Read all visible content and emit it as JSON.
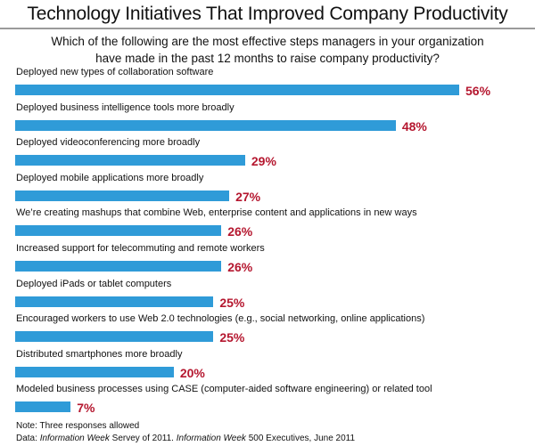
{
  "chart_data": {
    "type": "bar",
    "orientation": "horizontal",
    "title": "Technology Initiatives That Improved Company Productivity",
    "subtitle": [
      "Which of the following are the most effective steps managers in your organization",
      "have made in the past 12 months to raise company productivity?"
    ],
    "categories": [
      "Deployed new types of collaboration software",
      "Deployed business intelligence tools more broadly",
      "Deployed videoconferencing more broadly",
      "Deployed mobile applications more broadly",
      "We’re creating mashups that combine Web, enterprise content and applications in new ways",
      "Increased support for telecommuting and remote workers",
      "Deployed iPads or tablet computers",
      "Encouraged workers to use Web 2.0 technologies (e.g., social networking, online applications)",
      "Distributed smartphones more broadly",
      "Modeled business processes using CASE (computer-aided software engineering) or related tool"
    ],
    "values": [
      56,
      48,
      29,
      27,
      26,
      26,
      25,
      25,
      20,
      7
    ],
    "data_labels": [
      "56%",
      "48%",
      "29%",
      "27%",
      "26%",
      "26%",
      "25%",
      "25%",
      "20%",
      "7%"
    ],
    "unit": "%",
    "bar_color": "#2f9bd8",
    "label_color": "#b5172f",
    "grid": false
  },
  "footer": {
    "note": "Note: Three responses allowed",
    "source_prefix": "Data: ",
    "source_pub1": "Information Week",
    "source_mid": " Servey of 2011. ",
    "source_pub2": "Information Week",
    "source_end": " 500 Executives, June 2011"
  }
}
